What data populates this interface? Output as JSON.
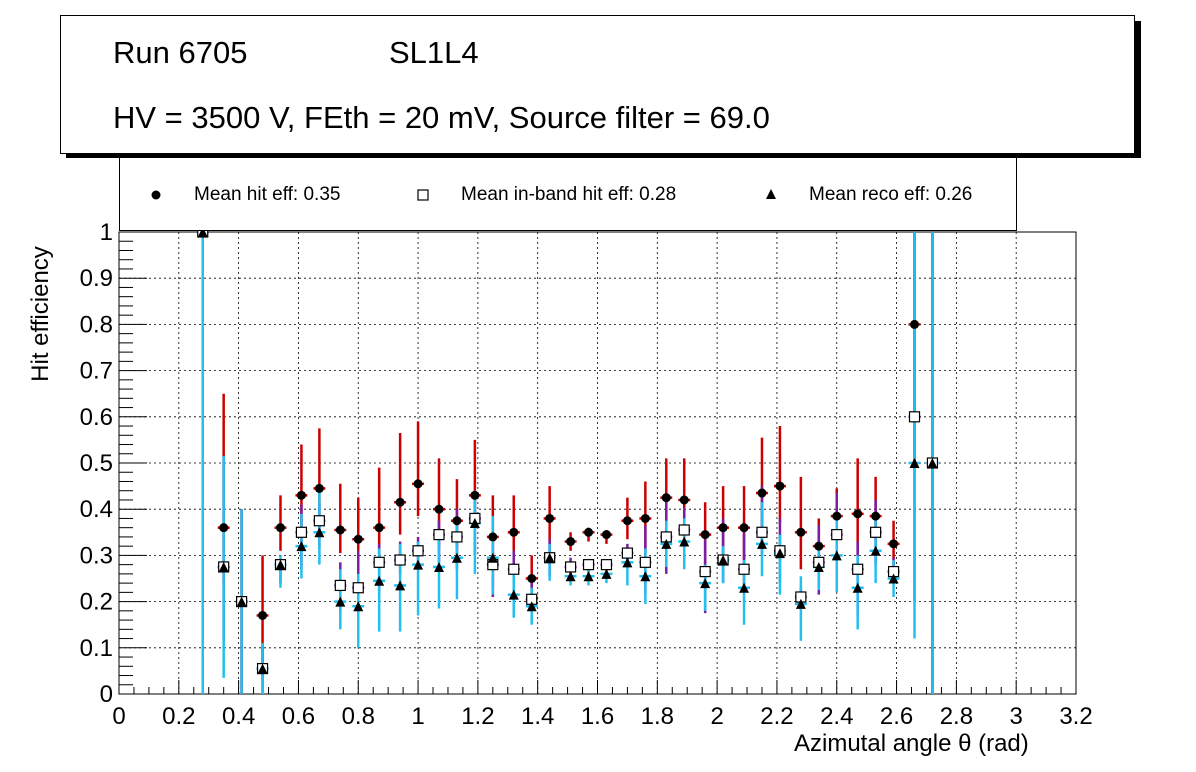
{
  "header": {
    "run_label": "Run 6705",
    "layer_label": "SL1L4",
    "conditions": "HV = 3500 V, FEth = 20 mV, Source filter = 69.0"
  },
  "legend": {
    "hit": "Mean hit  eff: 0.35",
    "inband": "Mean in-band hit eff: 0.28",
    "reco": "Mean reco eff: 0.26"
  },
  "colors": {
    "hit_error": "#cc0000",
    "inband_error": "#7a1fa2",
    "reco_error": "#22c0f0",
    "marker": "#000000",
    "open_marker_fill": "#ffffff",
    "grid": "#000000"
  },
  "chart_data": {
    "type": "scatter",
    "xlabel": "Azimutal angle θ (rad)",
    "ylabel": "Hit efficiency",
    "xlim": [
      0,
      3.2
    ],
    "ylim": [
      0,
      1
    ],
    "grid": true,
    "legend_position": "top",
    "x_ticks": [
      "0",
      "0.2",
      "0.4",
      "0.6",
      "0.8",
      "1",
      "1.2",
      "1.4",
      "1.6",
      "1.8",
      "2",
      "2.2",
      "2.4",
      "2.6",
      "2.8",
      "3",
      "3.2"
    ],
    "y_ticks": [
      "0",
      "0.1",
      "0.2",
      "0.3",
      "0.4",
      "0.5",
      "0.6",
      "0.7",
      "0.8",
      "0.9",
      "1"
    ],
    "x_half_width": 0.02,
    "series": [
      {
        "name": "Mean hit  eff: 0.35",
        "marker": "filled-circle",
        "points": [
          [
            0.28,
            1.0,
            0.0,
            0.0
          ],
          [
            0.35,
            0.36,
            0.12,
            0.29
          ],
          [
            0.41,
            0.2,
            0.2,
            0.2
          ],
          [
            0.48,
            0.17,
            0.13,
            0.13
          ],
          [
            0.54,
            0.36,
            0.05,
            0.07
          ],
          [
            0.61,
            0.43,
            0.11,
            0.11
          ],
          [
            0.67,
            0.445,
            0.09,
            0.13
          ],
          [
            0.74,
            0.355,
            0.05,
            0.1
          ],
          [
            0.8,
            0.335,
            0.07,
            0.09
          ],
          [
            0.87,
            0.36,
            0.08,
            0.13
          ],
          [
            0.94,
            0.415,
            0.07,
            0.15
          ],
          [
            1.0,
            0.455,
            0.07,
            0.135
          ],
          [
            1.07,
            0.4,
            0.08,
            0.11
          ],
          [
            1.13,
            0.375,
            0.06,
            0.09
          ],
          [
            1.19,
            0.43,
            0.06,
            0.12
          ],
          [
            1.25,
            0.34,
            0.11,
            0.09
          ],
          [
            1.32,
            0.35,
            0.07,
            0.08
          ],
          [
            1.38,
            0.25,
            0.05,
            0.05
          ],
          [
            1.44,
            0.38,
            0.1,
            0.07
          ],
          [
            1.51,
            0.33,
            0.02,
            0.02
          ],
          [
            1.57,
            0.35,
            0.02,
            0.01
          ],
          [
            1.63,
            0.345,
            0.02,
            0.01
          ],
          [
            1.7,
            0.375,
            0.04,
            0.05
          ],
          [
            1.76,
            0.38,
            0.07,
            0.08
          ],
          [
            1.83,
            0.425,
            0.05,
            0.085
          ],
          [
            1.89,
            0.42,
            0.08,
            0.09
          ],
          [
            1.96,
            0.345,
            0.08,
            0.07
          ],
          [
            2.02,
            0.36,
            0.06,
            0.09
          ],
          [
            2.09,
            0.36,
            0.07,
            0.09
          ],
          [
            2.15,
            0.435,
            0.08,
            0.12
          ],
          [
            2.21,
            0.45,
            0.08,
            0.13
          ],
          [
            2.28,
            0.35,
            0.08,
            0.12
          ],
          [
            2.34,
            0.32,
            0.04,
            0.06
          ],
          [
            2.4,
            0.385,
            0.07,
            0.06
          ],
          [
            2.47,
            0.39,
            0.09,
            0.12
          ],
          [
            2.53,
            0.385,
            0.05,
            0.085
          ],
          [
            2.59,
            0.325,
            0.05,
            0.05
          ],
          [
            2.66,
            0.8,
            0.3,
            0.2
          ],
          [
            2.72,
            0.5,
            0.5,
            0.5
          ]
        ]
      },
      {
        "name": "Mean in-band hit eff: 0.28",
        "marker": "open-square",
        "points": [
          [
            0.28,
            1.0,
            0.0,
            0.0
          ],
          [
            0.35,
            0.275,
            0.16,
            0.24
          ],
          [
            0.41,
            0.2,
            0.2,
            0.2
          ],
          [
            0.48,
            0.055,
            0.05,
            0.05
          ],
          [
            0.54,
            0.28,
            0.04,
            0.01
          ],
          [
            0.61,
            0.35,
            0.08,
            0.06
          ],
          [
            0.67,
            0.375,
            0.06,
            0.04
          ],
          [
            0.74,
            0.235,
            0.06,
            0.05
          ],
          [
            0.8,
            0.23,
            0.07,
            0.08
          ],
          [
            0.87,
            0.285,
            0.07,
            0.04
          ],
          [
            0.94,
            0.29,
            0.03,
            0.04
          ],
          [
            1.0,
            0.31,
            0.03,
            0.03
          ],
          [
            1.07,
            0.345,
            0.06,
            0.03
          ],
          [
            1.13,
            0.34,
            0.07,
            0.06
          ],
          [
            1.19,
            0.38,
            0.08,
            0.06
          ],
          [
            1.25,
            0.28,
            0.07,
            0.07
          ],
          [
            1.32,
            0.27,
            0.04,
            0.04
          ],
          [
            1.38,
            0.205,
            0.02,
            0.04
          ],
          [
            1.44,
            0.295,
            0.04,
            0.04
          ],
          [
            1.51,
            0.275,
            0.02,
            0.02
          ],
          [
            1.57,
            0.28,
            0.02,
            0.01
          ],
          [
            1.63,
            0.28,
            0.02,
            0.01
          ],
          [
            1.7,
            0.305,
            0.02,
            0.02
          ],
          [
            1.76,
            0.285,
            0.07,
            0.08
          ],
          [
            1.83,
            0.34,
            0.08,
            0.08
          ],
          [
            1.89,
            0.355,
            0.05,
            0.05
          ],
          [
            1.96,
            0.265,
            0.09,
            0.07
          ],
          [
            2.02,
            0.29,
            0.05,
            0.09
          ],
          [
            2.09,
            0.27,
            0.05,
            0.08
          ],
          [
            2.15,
            0.35,
            0.05,
            0.1
          ],
          [
            2.21,
            0.31,
            0.07,
            0.07
          ],
          [
            2.28,
            0.21,
            0.02,
            0.02
          ],
          [
            2.34,
            0.285,
            0.07,
            0.08
          ],
          [
            2.4,
            0.345,
            0.09,
            0.09
          ],
          [
            2.47,
            0.27,
            0.1,
            0.06
          ],
          [
            2.53,
            0.35,
            0.07,
            0.07
          ],
          [
            2.59,
            0.265,
            0.02,
            0.03
          ],
          [
            2.66,
            0.6,
            0.4,
            0.4
          ],
          [
            2.72,
            0.5,
            0.5,
            0.5
          ]
        ]
      },
      {
        "name": "Mean reco eff: 0.26",
        "marker": "filled-triangle",
        "points": [
          [
            0.28,
            1.0,
            1.0,
            0.0
          ],
          [
            0.35,
            0.275,
            0.24,
            0.24
          ],
          [
            0.41,
            0.2,
            0.2,
            0.2
          ],
          [
            0.48,
            0.055,
            0.055,
            0.055
          ],
          [
            0.54,
            0.28,
            0.05,
            0.02
          ],
          [
            0.61,
            0.32,
            0.07,
            0.07
          ],
          [
            0.67,
            0.35,
            0.07,
            0.1
          ],
          [
            0.74,
            0.2,
            0.06,
            0.07
          ],
          [
            0.8,
            0.19,
            0.09,
            0.07
          ],
          [
            0.87,
            0.245,
            0.11,
            0.07
          ],
          [
            0.94,
            0.235,
            0.1,
            0.09
          ],
          [
            1.0,
            0.28,
            0.11,
            0.05
          ],
          [
            1.07,
            0.275,
            0.09,
            0.06
          ],
          [
            1.13,
            0.295,
            0.09,
            0.07
          ],
          [
            1.19,
            0.37,
            0.11,
            0.07
          ],
          [
            1.25,
            0.295,
            0.08,
            0.09
          ],
          [
            1.32,
            0.215,
            0.05,
            0.06
          ],
          [
            1.38,
            0.19,
            0.04,
            0.04
          ],
          [
            1.44,
            0.295,
            0.05,
            0.03
          ],
          [
            1.51,
            0.255,
            0.02,
            0.02
          ],
          [
            1.57,
            0.255,
            0.02,
            0.02
          ],
          [
            1.63,
            0.26,
            0.02,
            0.02
          ],
          [
            1.7,
            0.285,
            0.05,
            0.03
          ],
          [
            1.76,
            0.255,
            0.06,
            0.06
          ],
          [
            1.83,
            0.325,
            0.05,
            0.05
          ],
          [
            1.89,
            0.33,
            0.06,
            0.05
          ],
          [
            1.96,
            0.24,
            0.06,
            0.04
          ],
          [
            2.02,
            0.29,
            0.05,
            0.03
          ],
          [
            2.09,
            0.23,
            0.08,
            0.06
          ],
          [
            2.15,
            0.325,
            0.07,
            0.09
          ],
          [
            2.21,
            0.305,
            0.09,
            0.04
          ],
          [
            2.28,
            0.195,
            0.08,
            0.06
          ],
          [
            2.34,
            0.275,
            0.05,
            0.05
          ],
          [
            2.4,
            0.3,
            0.08,
            0.08
          ],
          [
            2.47,
            0.23,
            0.09,
            0.07
          ],
          [
            2.53,
            0.31,
            0.07,
            0.07
          ],
          [
            2.59,
            0.25,
            0.04,
            0.04
          ],
          [
            2.66,
            0.5,
            0.38,
            0.5
          ],
          [
            2.72,
            0.5,
            0.5,
            0.5
          ]
        ]
      }
    ]
  }
}
